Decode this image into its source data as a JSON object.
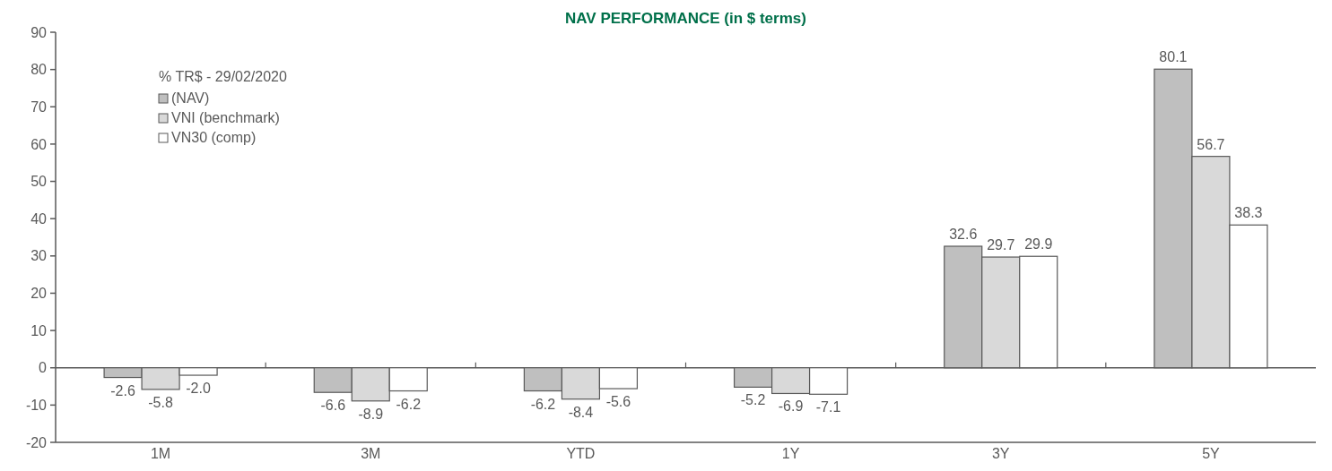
{
  "chart_data": {
    "type": "bar",
    "title": "NAV PERFORMANCE (in $ terms)",
    "legend_title": "% TR$ - 29/02/2020",
    "categories": [
      "1M",
      "3M",
      "YTD",
      "1Y",
      "3Y",
      "5Y"
    ],
    "series": [
      {
        "name": "(NAV)",
        "color": "#bfbfbf",
        "values": [
          -2.6,
          -6.6,
          -6.2,
          -5.2,
          32.6,
          80.1
        ],
        "value_labels": [
          "-2.6",
          "-6.6",
          "-6.2",
          "-5.2",
          "32.6",
          "80.1"
        ]
      },
      {
        "name": "VNI (benchmark)",
        "color": "#d9d9d9",
        "values": [
          -5.8,
          -8.9,
          -8.4,
          -6.9,
          29.7,
          56.7
        ],
        "value_labels": [
          "-5.8",
          "-8.9",
          "-8.4",
          "-6.9",
          "29.7",
          "56.7"
        ]
      },
      {
        "name": "VN30 (comp)",
        "color": "#ffffff",
        "values": [
          -2.0,
          -6.2,
          -5.6,
          -7.1,
          29.9,
          38.3
        ],
        "value_labels": [
          "-2.0",
          "-6.2",
          "-5.6",
          "-7.1",
          "29.9",
          "38.3"
        ]
      }
    ],
    "ylim": [
      -20,
      90
    ],
    "yticks": [
      -20,
      -10,
      0,
      10,
      20,
      30,
      40,
      50,
      60,
      70,
      80,
      90
    ],
    "legend": "top left"
  }
}
